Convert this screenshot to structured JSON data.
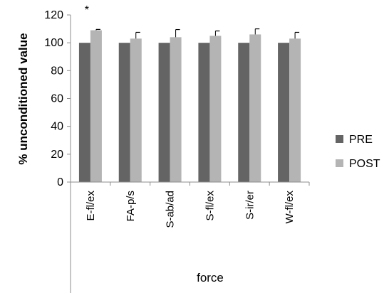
{
  "chart_data": {
    "type": "bar",
    "categories": [
      "E-fl/ex",
      "FA-p/s",
      "S-ab/ad",
      "S-fl/ex",
      "S-ir/er",
      "W-fl/ex"
    ],
    "series": [
      {
        "name": "PRE",
        "color": "#646464",
        "values": [
          100,
          100,
          100,
          100,
          100,
          100
        ]
      },
      {
        "name": "POST",
        "color": "#b4b4b4",
        "values": [
          109,
          103,
          104,
          105,
          106,
          103
        ],
        "errors": [
          0.6,
          4.5,
          5.5,
          3.5,
          4,
          4.5
        ]
      }
    ],
    "xlabel": "force",
    "ylabel": "% unconditioned value",
    "ylim": [
      0,
      120
    ],
    "yticks": [
      0,
      20,
      40,
      60,
      80,
      100,
      120
    ],
    "grid": false,
    "legend": "right",
    "annotations": [
      {
        "text": "*",
        "category": "E-fl/ex"
      }
    ]
  }
}
